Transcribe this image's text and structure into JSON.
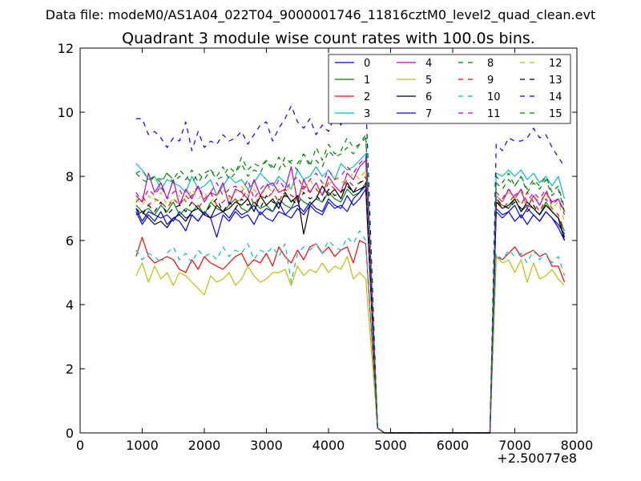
{
  "suptitle": "Data file: modeM0/AS1A04_022T04_9000001746_11816cztM0_level2_quad_clean.evt",
  "chart_data": {
    "type": "line",
    "title": "Quadrant 3 module wise count rates with 100.0s bins.",
    "xlabel": "",
    "ylabel": "",
    "x_offset_label": "+2.50077e8",
    "xlim": [
      0,
      8000
    ],
    "ylim": [
      0,
      12
    ],
    "xticks": [
      "0",
      "1000",
      "2000",
      "3000",
      "4000",
      "5000",
      "6000",
      "7000",
      "8000"
    ],
    "yticks": [
      "0",
      "2",
      "4",
      "6",
      "8",
      "10",
      "12"
    ],
    "grid": false,
    "legend_position": "top-right",
    "legend_columns": 4,
    "x": [
      900,
      1000,
      1100,
      1200,
      1300,
      1400,
      1500,
      1600,
      1700,
      1800,
      1900,
      2000,
      2100,
      2200,
      2300,
      2400,
      2500,
      2600,
      2700,
      2800,
      2900,
      3000,
      3100,
      3200,
      3300,
      3400,
      3500,
      3600,
      3700,
      3800,
      3900,
      4000,
      4100,
      4200,
      4300,
      4400,
      4500,
      4600,
      4700,
      4800,
      4900,
      5000,
      5100,
      5200,
      5300,
      5400,
      5500,
      5600,
      5700,
      5800,
      5900,
      6000,
      6100,
      6200,
      6300,
      6400,
      6500,
      6600,
      6700,
      6800,
      6900,
      7000,
      7100,
      7200,
      7300,
      7400,
      7500,
      7600,
      7700,
      7800
    ],
    "series": [
      {
        "name": "0",
        "color": "#0000ff",
        "dash": "solid",
        "pre": [
          7.0,
          6.6,
          6.9,
          6.8,
          6.7,
          6.8,
          6.6,
          6.9,
          6.7,
          6.8,
          6.6,
          6.9,
          6.7,
          6.8,
          6.9,
          6.7,
          7.0,
          6.8,
          6.9,
          7.1,
          6.8,
          7.0,
          6.9,
          7.2,
          6.8,
          7.0,
          7.1,
          6.9,
          7.2,
          7.0,
          6.9,
          7.3,
          7.1,
          7.0,
          7.4,
          7.1,
          7.3,
          7.6
        ],
        "post": [
          7.0,
          6.8,
          6.9,
          7.1,
          6.7,
          7.0,
          6.8,
          6.6,
          6.9,
          6.7,
          6.5,
          6.2
        ]
      },
      {
        "name": "1",
        "color": "#008000",
        "dash": "solid",
        "pre": [
          7.1,
          6.9,
          7.0,
          6.8,
          7.1,
          6.9,
          7.2,
          6.8,
          7.0,
          6.9,
          7.1,
          6.8,
          7.2,
          7.0,
          6.9,
          7.1,
          7.3,
          7.0,
          6.9,
          7.2,
          7.0,
          7.1,
          6.9,
          7.3,
          7.1,
          7.0,
          7.4,
          7.2,
          7.1,
          7.3,
          7.2,
          7.5,
          7.3,
          7.2,
          7.6,
          7.4,
          7.5,
          7.8
        ],
        "post": [
          7.2,
          7.1,
          7.0,
          7.3,
          6.9,
          7.1,
          7.0,
          6.8,
          7.2,
          6.9,
          6.7,
          6.3
        ]
      },
      {
        "name": "2",
        "color": "#ff0000",
        "dash": "solid",
        "pre": [
          5.5,
          6.1,
          5.5,
          5.3,
          5.4,
          5.5,
          5.4,
          5.1,
          5.0,
          5.4,
          5.1,
          5.5,
          5.3,
          5.2,
          5.1,
          5.3,
          5.5,
          5.6,
          5.2,
          5.4,
          5.3,
          5.6,
          5.2,
          5.8,
          5.5,
          5.3,
          5.7,
          5.4,
          5.8,
          5.9,
          5.6,
          5.8,
          5.5,
          5.7,
          5.8,
          5.3,
          6.0,
          5.9
        ],
        "post": [
          5.5,
          5.4,
          5.6,
          5.8,
          5.5,
          5.6,
          5.7,
          5.5,
          5.6,
          5.2,
          5.2,
          4.7
        ]
      },
      {
        "name": "3",
        "color": "#00bfbf",
        "dash": "solid",
        "pre": [
          8.4,
          8.2,
          7.9,
          8.0,
          7.6,
          7.9,
          7.8,
          7.7,
          7.5,
          8.0,
          7.6,
          7.7,
          7.9,
          7.4,
          7.7,
          8.0,
          7.8,
          7.9,
          7.6,
          7.8,
          8.1,
          7.9,
          7.7,
          8.0,
          7.8,
          7.6,
          8.2,
          7.9,
          8.0,
          8.3,
          8.0,
          8.2,
          7.9,
          8.4,
          8.2,
          8.3,
          8.5,
          8.7
        ],
        "post": [
          8.1,
          8.0,
          8.2,
          8.0,
          8.2,
          7.9,
          8.1,
          7.8,
          8.0,
          7.7,
          8.0,
          7.3
        ]
      },
      {
        "name": "4",
        "color": "#bf00bf",
        "dash": "solid",
        "pre": [
          7.4,
          7.2,
          8.1,
          7.5,
          7.8,
          7.3,
          7.9,
          7.1,
          7.6,
          7.3,
          7.7,
          7.2,
          7.5,
          7.4,
          7.8,
          7.1,
          7.6,
          7.5,
          7.3,
          7.9,
          7.4,
          7.7,
          7.8,
          7.5,
          7.6,
          8.3,
          7.2,
          7.9,
          7.5,
          7.8,
          7.4,
          8.0,
          7.7,
          7.5,
          8.1,
          7.9,
          8.3,
          8.5
        ],
        "post": [
          7.4,
          7.2,
          7.6,
          7.3,
          7.6,
          7.0,
          7.4,
          7.1,
          7.5,
          7.2,
          7.3,
          6.9
        ]
      },
      {
        "name": "5",
        "color": "#bfbf00",
        "dash": "solid",
        "pre": [
          4.9,
          5.3,
          4.7,
          5.2,
          4.8,
          5.0,
          4.6,
          5.0,
          4.9,
          4.7,
          4.5,
          4.3,
          4.9,
          4.7,
          4.8,
          5.0,
          4.6,
          4.8,
          5.2,
          4.9,
          4.7,
          4.8,
          5.0,
          5.0,
          5.1,
          4.6,
          5.2,
          4.9,
          5.1,
          5.0,
          5.3,
          5.0,
          5.2,
          5.1,
          5.5,
          4.8,
          5.0,
          4.8
        ],
        "post": [
          5.5,
          5.3,
          5.4,
          5.0,
          5.4,
          4.7,
          5.3,
          4.8,
          4.9,
          5.1,
          4.8,
          4.6
        ]
      },
      {
        "name": "6",
        "color": "#000000",
        "dash": "solid",
        "pre": [
          6.8,
          6.9,
          6.7,
          6.5,
          6.6,
          6.4,
          6.7,
          6.8,
          6.6,
          6.9,
          7.0,
          6.8,
          6.7,
          7.1,
          6.9,
          7.0,
          7.2,
          7.1,
          7.3,
          6.9,
          7.4,
          7.1,
          7.3,
          7.0,
          7.5,
          7.2,
          7.4,
          6.2,
          7.1,
          7.3,
          7.7,
          7.4,
          7.6,
          7.3,
          7.8,
          7.5,
          7.6,
          7.7
        ],
        "post": [
          7.2,
          7.0,
          7.1,
          7.3,
          6.9,
          7.2,
          7.0,
          6.8,
          7.1,
          6.9,
          6.7,
          6.0
        ]
      },
      {
        "name": "7",
        "color": "#0000ff",
        "dash": "solid",
        "pre": [
          6.9,
          6.5,
          6.8,
          6.6,
          6.9,
          6.5,
          6.7,
          6.6,
          6.3,
          6.8,
          6.6,
          6.9,
          6.7,
          6.1,
          6.8,
          6.6,
          6.9,
          6.7,
          6.8,
          6.5,
          6.9,
          6.7,
          6.6,
          6.9,
          6.8,
          6.7,
          7.0,
          6.8,
          7.1,
          6.9,
          6.8,
          7.2,
          7.0,
          7.1,
          6.9,
          7.3,
          7.5,
          7.7
        ],
        "post": [
          6.9,
          6.7,
          6.9,
          6.6,
          6.8,
          6.5,
          6.8,
          6.6,
          6.9,
          6.7,
          6.4,
          6.0
        ]
      },
      {
        "name": "8",
        "color": "#008000",
        "dash": "dashed",
        "pre": [
          8.1,
          7.9,
          7.8,
          8.0,
          7.9,
          8.1,
          7.8,
          8.0,
          7.9,
          8.2,
          7.8,
          8.1,
          8.2,
          7.9,
          8.0,
          8.3,
          8.1,
          8.6,
          8.2,
          8.4,
          8.3,
          8.5,
          8.2,
          8.6,
          8.3,
          8.5,
          8.4,
          8.7,
          8.3,
          8.9,
          8.5,
          9.0,
          8.7,
          8.8,
          9.2,
          8.9,
          9.0,
          9.3
        ],
        "post": [
          7.8,
          7.6,
          7.9,
          7.7,
          8.0,
          7.5,
          7.8,
          7.6,
          7.9,
          7.4,
          7.6,
          6.9
        ]
      },
      {
        "name": "9",
        "color": "#ff0000",
        "dash": "dashed",
        "pre": [
          7.2,
          7.4,
          7.1,
          7.3,
          7.2,
          7.0,
          7.3,
          7.1,
          7.4,
          7.2,
          7.0,
          7.3,
          7.5,
          7.1,
          7.2,
          7.4,
          7.2,
          7.3,
          7.6,
          7.1,
          7.4,
          7.3,
          7.5,
          7.2,
          7.6,
          7.4,
          7.3,
          7.7,
          7.5,
          7.6,
          7.4,
          7.8,
          7.6,
          7.5,
          7.9,
          7.7,
          7.8,
          8.0
        ],
        "post": [
          7.3,
          7.0,
          7.2,
          7.4,
          7.1,
          7.5,
          7.2,
          6.9,
          7.3,
          7.0,
          6.8,
          6.3
        ]
      },
      {
        "name": "10",
        "color": "#00bfbf",
        "dash": "dashed",
        "pre": [
          5.7,
          5.4,
          5.6,
          5.5,
          5.3,
          5.6,
          5.8,
          5.4,
          5.6,
          5.3,
          5.7,
          5.5,
          5.6,
          5.4,
          5.8,
          5.5,
          5.7,
          5.6,
          5.9,
          5.4,
          5.7,
          5.6,
          5.8,
          5.5,
          5.9,
          4.7,
          5.6,
          5.8,
          5.7,
          5.9,
          5.6,
          6.0,
          5.8,
          5.7,
          6.1,
          5.9,
          6.3,
          6.0
        ],
        "post": [
          5.6,
          5.4,
          5.7,
          5.5,
          5.6,
          5.3,
          5.7,
          5.4,
          5.6,
          5.3,
          5.5,
          4.9
        ]
      },
      {
        "name": "11",
        "color": "#bf00bf",
        "dash": "dashed",
        "pre": [
          7.5,
          7.2,
          7.6,
          7.4,
          7.7,
          7.3,
          7.5,
          7.6,
          7.2,
          7.4,
          7.7,
          7.3,
          7.5,
          7.8,
          7.4,
          7.6,
          7.7,
          7.5,
          7.9,
          7.3,
          7.6,
          7.8,
          7.5,
          7.9,
          7.6,
          7.8,
          8.0,
          7.6,
          7.9,
          8.1,
          7.8,
          8.2,
          7.9,
          8.0,
          8.3,
          8.1,
          8.4,
          8.6
        ],
        "post": [
          7.5,
          7.3,
          7.6,
          7.4,
          7.6,
          7.2,
          7.5,
          7.3,
          7.6,
          7.1,
          7.3,
          6.8
        ]
      },
      {
        "name": "12",
        "color": "#bfbf00",
        "dash": "dashed",
        "pre": [
          7.3,
          7.1,
          7.4,
          7.2,
          7.5,
          7.1,
          7.3,
          7.4,
          7.2,
          7.6,
          7.3,
          7.5,
          7.2,
          7.4,
          7.6,
          7.3,
          7.5,
          7.7,
          7.4,
          7.6,
          7.3,
          7.7,
          7.5,
          7.6,
          7.4,
          7.8,
          7.6,
          7.5,
          7.9,
          7.6,
          7.8,
          7.7,
          8.0,
          7.8,
          7.9,
          8.1,
          7.9,
          8.2
        ],
        "post": [
          7.4,
          7.2,
          7.5,
          7.3,
          7.5,
          7.1,
          7.4,
          7.2,
          7.5,
          7.0,
          7.2,
          6.6
        ]
      },
      {
        "name": "13",
        "color": "#000000",
        "dash": "dashed",
        "pre": [
          7.0,
          6.8,
          7.1,
          6.9,
          7.2,
          6.8,
          7.0,
          7.1,
          6.9,
          7.2,
          7.0,
          6.8,
          7.1,
          7.3,
          6.9,
          7.2,
          7.0,
          7.3,
          7.1,
          7.2,
          7.0,
          7.4,
          7.2,
          7.1,
          7.4,
          7.3,
          7.1,
          7.5,
          7.3,
          7.4,
          7.2,
          7.6,
          7.4,
          7.5,
          7.7,
          7.5,
          7.8,
          7.9
        ],
        "post": [
          7.3,
          7.1,
          7.0,
          7.2,
          7.0,
          6.9,
          7.1,
          6.8,
          7.1,
          6.9,
          6.7,
          6.1
        ]
      },
      {
        "name": "14",
        "color": "#0000ff",
        "dash": "dashed",
        "pre": [
          9.8,
          9.8,
          9.3,
          9.4,
          9.2,
          8.9,
          9.2,
          9.1,
          9.7,
          8.8,
          9.4,
          8.9,
          9.1,
          9.0,
          9.3,
          9.1,
          9.2,
          9.4,
          9.0,
          9.3,
          9.6,
          9.7,
          9.1,
          9.5,
          9.8,
          10.2,
          9.7,
          9.5,
          9.8,
          9.3,
          9.6,
          9.4,
          9.9,
          9.6,
          10.1,
          9.7,
          10.3,
          10.4
        ],
        "post": [
          9.0,
          8.8,
          9.2,
          9.1,
          9.1,
          9.2,
          9.5,
          9.2,
          9.3,
          8.9,
          8.6,
          8.3
        ]
      },
      {
        "name": "15",
        "color": "#008000",
        "dash": "dashed",
        "pre": [
          8.1,
          8.2,
          7.9,
          8.0,
          7.8,
          8.1,
          7.9,
          8.2,
          8.0,
          7.8,
          8.1,
          7.9,
          8.2,
          8.0,
          8.3,
          7.9,
          8.1,
          8.4,
          8.0,
          8.2,
          8.1,
          8.5,
          8.3,
          8.2,
          8.6,
          8.4,
          8.2,
          8.7,
          8.4,
          8.5,
          8.3,
          8.8,
          8.6,
          8.7,
          8.9,
          8.7,
          9.0,
          9.2
        ],
        "post": [
          8.0,
          7.8,
          8.1,
          7.7,
          8.0,
          7.6,
          7.9,
          7.7,
          8.0,
          7.5,
          7.7,
          7.0
        ]
      }
    ]
  }
}
